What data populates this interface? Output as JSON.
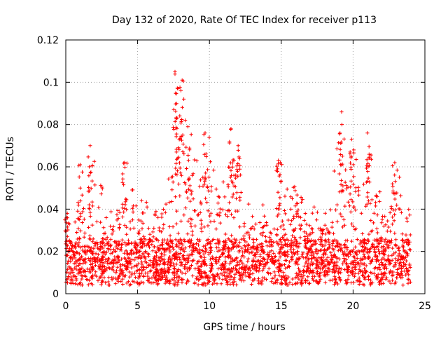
{
  "chart_data": {
    "type": "scatter",
    "title": "Day 132 of 2020, Rate Of TEC Index for receiver p113",
    "xlabel": "GPS time / hours",
    "ylabel": "ROTI / TECUs",
    "xlim": [
      0,
      25
    ],
    "ylim": [
      0,
      0.12
    ],
    "grid": true,
    "marker": "+",
    "colors": {
      "marker": "#ff0000",
      "grid": "#a0a0a0",
      "axis": "#000000"
    },
    "x_ticks": [
      0,
      5,
      10,
      15,
      20,
      25
    ],
    "x_tick_labels": [
      "0",
      "5",
      "10",
      "15",
      "20",
      "25"
    ],
    "y_ticks": [
      0,
      0.02,
      0.04,
      0.06,
      0.08,
      0.1,
      0.12
    ],
    "y_tick_labels": [
      "0",
      "0.02",
      "0.04",
      "0.06",
      "0.08",
      "0.1",
      "0.12"
    ],
    "series": [
      {
        "name": "ROTI",
        "description_of_distribution": "dense band between ~0.005 and ~0.03 across 0-24 h with spikes",
        "envelope_x": [
          0,
          0.5,
          1,
          1.5,
          2,
          2.5,
          3,
          3.5,
          4,
          4.5,
          5,
          5.5,
          6,
          6.5,
          7,
          7.5,
          8,
          8.5,
          9,
          9.5,
          10,
          10.5,
          11,
          11.5,
          12,
          12.5,
          13,
          13.5,
          14,
          14.5,
          15,
          15.5,
          16,
          16.5,
          17,
          17.5,
          18,
          18.5,
          19,
          19.5,
          20,
          20.5,
          21,
          21.5,
          22,
          22.5,
          23,
          23.5,
          24
        ],
        "envelope_upper": [
          0.038,
          0.03,
          0.053,
          0.043,
          0.069,
          0.051,
          0.038,
          0.042,
          0.062,
          0.057,
          0.05,
          0.045,
          0.038,
          0.044,
          0.056,
          0.06,
          0.102,
          0.08,
          0.078,
          0.05,
          0.076,
          0.05,
          0.055,
          0.078,
          0.07,
          0.05,
          0.042,
          0.04,
          0.046,
          0.04,
          0.063,
          0.047,
          0.052,
          0.045,
          0.043,
          0.04,
          0.046,
          0.042,
          0.086,
          0.06,
          0.073,
          0.052,
          0.076,
          0.056,
          0.047,
          0.05,
          0.061,
          0.048,
          0.048
        ],
        "spikes": [
          {
            "x": 0.1,
            "y": 0.038
          },
          {
            "x": 1.0,
            "y": 0.061
          },
          {
            "x": 1.7,
            "y": 0.07
          },
          {
            "x": 4.1,
            "y": 0.062
          },
          {
            "x": 7.6,
            "y": 0.105
          },
          {
            "x": 7.8,
            "y": 0.097
          },
          {
            "x": 8.1,
            "y": 0.101
          },
          {
            "x": 8.5,
            "y": 0.079
          },
          {
            "x": 9.7,
            "y": 0.076
          },
          {
            "x": 11.5,
            "y": 0.078
          },
          {
            "x": 12.0,
            "y": 0.07
          },
          {
            "x": 14.8,
            "y": 0.063
          },
          {
            "x": 19.2,
            "y": 0.086
          },
          {
            "x": 19.9,
            "y": 0.073
          },
          {
            "x": 21.0,
            "y": 0.076
          },
          {
            "x": 22.9,
            "y": 0.062
          }
        ]
      }
    ]
  }
}
